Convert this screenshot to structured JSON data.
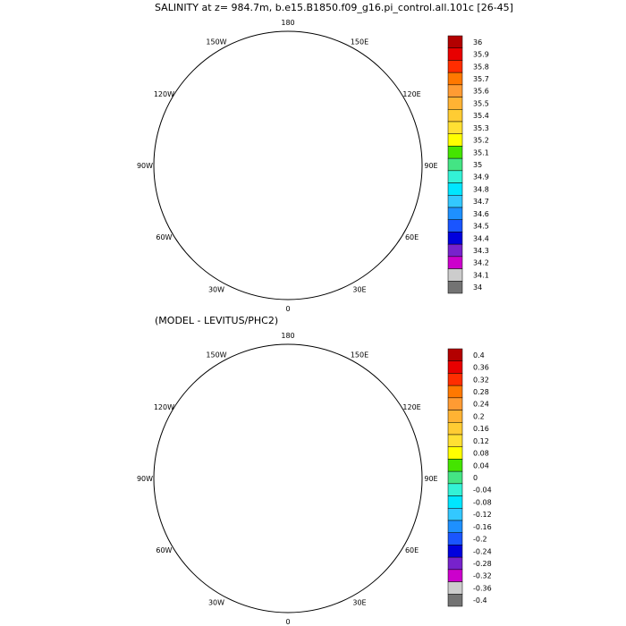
{
  "panels": [
    {
      "id": "top",
      "title": "SALINITY at z= 984.7m, b.e15.B1850.f09_g16.pi_control.all.101c [26-45]",
      "lon_labels": [
        "180",
        "150E",
        "120E",
        "90E",
        "60E",
        "30E",
        "0",
        "30W",
        "60W",
        "90W",
        "120W",
        "150W"
      ],
      "colorbar": {
        "labels": [
          "36",
          "35.9",
          "35.8",
          "35.7",
          "35.6",
          "35.5",
          "35.4",
          "35.3",
          "35.2",
          "35.1",
          "35",
          "34.9",
          "34.8",
          "34.7",
          "34.6",
          "34.5",
          "34.4",
          "34.3",
          "34.2",
          "34.1",
          "34"
        ],
        "colors": [
          "#b30000",
          "#e80000",
          "#ff2d00",
          "#ff7800",
          "#ff9b33",
          "#ffb333",
          "#ffcc33",
          "#ffe033",
          "#ffff00",
          "#44e400",
          "#44e484",
          "#33f2d6",
          "#00e6ff",
          "#33c8ff",
          "#1e90ff",
          "#1a55ff",
          "#0000dd",
          "#7722cc",
          "#cc00cc",
          "#cccccc",
          "#737373"
        ]
      },
      "fields": {
        "main": "#44e484",
        "small": "#33e6f6"
      }
    },
    {
      "id": "bottom",
      "title": "(MODEL - LEVITUS/PHC2)",
      "lon_labels": [
        "180",
        "150E",
        "120E",
        "90E",
        "60E",
        "30E",
        "0",
        "30W",
        "60W",
        "90W",
        "120W",
        "150W"
      ],
      "colorbar": {
        "labels": [
          "0.4",
          "0.36",
          "0.32",
          "0.28",
          "0.24",
          "0.2",
          "0.16",
          "0.12",
          "0.08",
          "0.04",
          "0",
          "-0.04",
          "-0.08",
          "-0.12",
          "-0.16",
          "-0.2",
          "-0.24",
          "-0.28",
          "-0.32",
          "-0.36",
          "-0.4"
        ],
        "colors": [
          "#b30000",
          "#e80000",
          "#ff2d00",
          "#ff7800",
          "#ff9b33",
          "#ffb333",
          "#ffcc33",
          "#ffe033",
          "#ffff00",
          "#44e400",
          "#44e484",
          "#33f2d6",
          "#00e6ff",
          "#33c8ff",
          "#1e90ff",
          "#1a55ff",
          "#0000dd",
          "#7722cc",
          "#cc00cc",
          "#cccccc",
          "#737373"
        ]
      },
      "fields": {
        "main": "#ffcc33",
        "small": "#33e6f6"
      }
    }
  ]
}
